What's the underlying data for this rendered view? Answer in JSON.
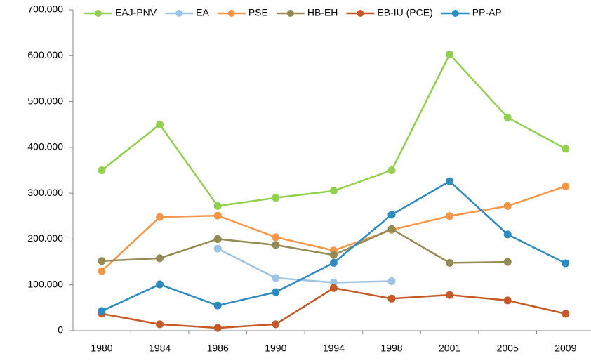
{
  "chart_data": {
    "type": "line",
    "categories": [
      "1980",
      "1984",
      "1986",
      "1990",
      "1994",
      "1998",
      "2001",
      "2005",
      "2009"
    ],
    "series": [
      {
        "name": "EAJ-PNV",
        "color": "#92d050",
        "values": [
          350000,
          450000,
          272000,
          290000,
          305000,
          350000,
          603000,
          465000,
          397000
        ]
      },
      {
        "name": "EA",
        "color": "#9dc3e6",
        "values": [
          null,
          null,
          179000,
          115000,
          105000,
          108000,
          null,
          null,
          null
        ]
      },
      {
        "name": "PSE",
        "color": "#f79646",
        "values": [
          130000,
          248000,
          251000,
          204000,
          175000,
          220000,
          250000,
          272000,
          315000
        ]
      },
      {
        "name": "HB-EH",
        "color": "#948a54",
        "values": [
          152000,
          158000,
          200000,
          187000,
          165000,
          222000,
          148000,
          150000,
          null
        ]
      },
      {
        "name": "EB-IU (PCE)",
        "color": "#c55a28",
        "values": [
          37000,
          14000,
          6000,
          14000,
          93000,
          70000,
          78000,
          66000,
          37000
        ]
      },
      {
        "name": "PP-AP",
        "color": "#2e8bc0",
        "values": [
          43000,
          101000,
          55000,
          84000,
          148000,
          253000,
          326000,
          210000,
          147000
        ]
      }
    ],
    "ylim": [
      0,
      700000
    ],
    "yticks": [
      0,
      {
        "value": 100000,
        "label": "100.000"
      },
      {
        "value": 200000,
        "label": "200.000"
      },
      {
        "value": 300000,
        "label": "300.000"
      },
      {
        "value": 400000,
        "label": "400.000"
      },
      {
        "value": 500000,
        "label": "500.000"
      },
      {
        "value": 600000,
        "label": "600.000"
      },
      {
        "value": 700000,
        "label": "700.000"
      }
    ],
    "legend": "top"
  }
}
